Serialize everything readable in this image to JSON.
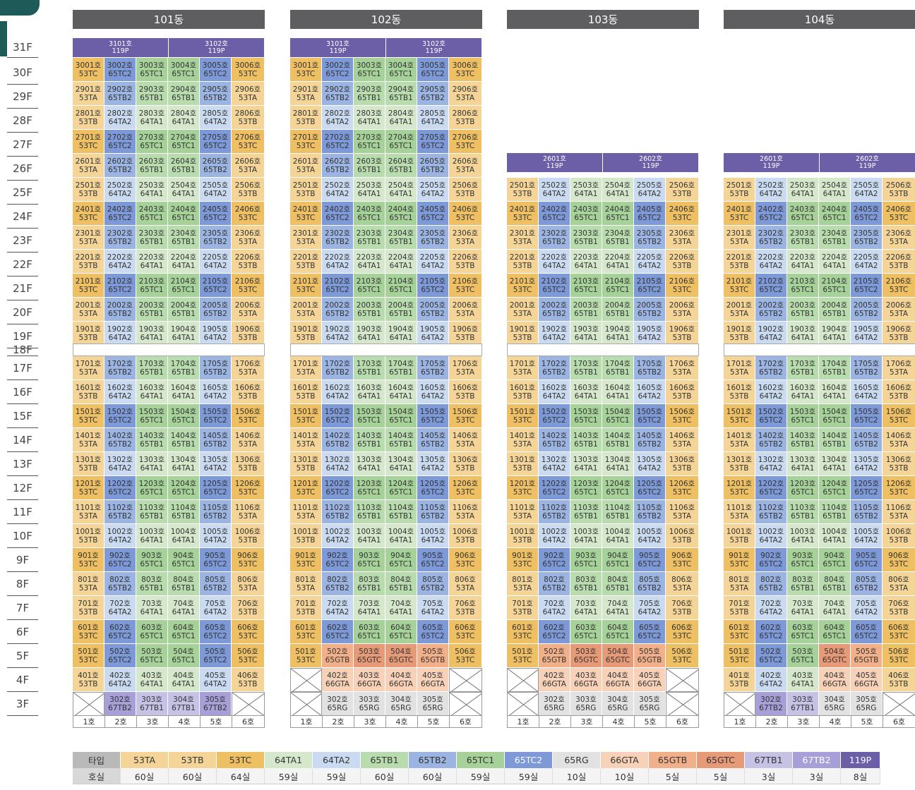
{
  "floor_labels": [
    "31F",
    "30F",
    "29F",
    "28F",
    "27F",
    "26F",
    "25F",
    "24F",
    "23F",
    "22F",
    "21F",
    "20F",
    "19F",
    "18F",
    "17F",
    "16F",
    "15F",
    "14F",
    "13F",
    "12F",
    "11F",
    "10F",
    "9F",
    "8F",
    "7F",
    "6F",
    "5F",
    "4F",
    "3F"
  ],
  "colors": {
    "53TA": "#f5d597",
    "53TB": "#f5d597",
    "53TC": "#eec063",
    "64TA1": "#d6e8cc",
    "64TA2": "#c9daf1",
    "65TB1": "#b9dcae",
    "65TB2": "#9cb4e2",
    "65TC1": "#a6d29a",
    "65TC2": "#7d99d8",
    "65RG": "#e2e2e2",
    "66GTA": "#f7d1b8",
    "65GTB": "#f2b08a",
    "65GTC": "#e79a78",
    "67TB1": "#c6c2e6",
    "67TB2": "#a79fd8",
    "119P": "#6d5ea8",
    "header": "#5e5e60",
    "floor_text": "#444"
  },
  "buildings": [
    {
      "name": "101동",
      "top_floor": 31,
      "p4": "normal",
      "p3": "normal",
      "top_pent": [
        "3101호",
        "3102호"
      ]
    },
    {
      "name": "102동",
      "top_floor": 31,
      "p4": "66",
      "p3": "65RG",
      "top_pent": [
        "3101호",
        "3102호"
      ]
    },
    {
      "name": "103동",
      "top_floor": 26,
      "p4": "66",
      "p3": "65RG",
      "top_pent": [
        "2601호",
        "2602호"
      ]
    },
    {
      "name": "104동",
      "top_floor": 26,
      "p4": "mix",
      "p3": "mix",
      "top_pent": [
        "2601호",
        "2602호"
      ]
    }
  ],
  "pent_type": "119P",
  "line_labels": [
    "1호",
    "2호",
    "3호",
    "4호",
    "5호",
    "6호"
  ],
  "cycle": {
    "mod0": [
      "53TC",
      "65TC2",
      "65TC1",
      "65TC1",
      "65TC2",
      "53TC"
    ],
    "mod1": [
      "53TB",
      "64TA2",
      "64TA1",
      "64TA1",
      "64TA2",
      "53TB"
    ],
    "mod2": [
      "53TA",
      "65TB2",
      "65TB1",
      "65TB1",
      "65TB2",
      "53TA"
    ]
  },
  "floor5": {
    "101동": [
      "53TC",
      "65TC2",
      "65TC1",
      "65TC1",
      "65TC2",
      "53TC"
    ],
    "102동": [
      "53TC",
      "65GTB",
      "65GTC",
      "65GTC",
      "65GTB",
      "53TC"
    ],
    "103동": [
      "53TC",
      "65GTB",
      "65GTC",
      "65GTC",
      "65GTB",
      "53TC"
    ],
    "104동": [
      "53TC",
      "65TC2",
      "65TC1",
      "65GTC",
      "65GTB",
      "53TC"
    ]
  },
  "floor4": {
    "101동": [
      "53TB",
      "64TA2",
      "64TA1",
      "64TA1",
      "64TA2",
      "53TB"
    ],
    "102동": [
      null,
      "66GTA",
      "66GTA",
      "66GTA",
      "66GTA",
      null
    ],
    "103동": [
      null,
      "66GTA",
      "66GTA",
      "66GTA",
      "66GTA",
      null
    ],
    "104동": [
      "53TB",
      "64TA2",
      "64TA1",
      "66GTA",
      "66GTA",
      "53TB"
    ]
  },
  "floor3": {
    "101동": [
      null,
      "67TB2",
      "67TB1",
      "67TB1",
      "67TB2",
      null
    ],
    "102동": [
      null,
      "65RG",
      "65RG",
      "65RG",
      "65RG",
      null
    ],
    "103동": [
      null,
      "65RG",
      "65RG",
      "65RG",
      "65RG",
      null
    ],
    "104동": [
      null,
      "67TB2",
      "67TB1",
      "65RG",
      "65RG",
      null
    ]
  },
  "unit_suffix": "호",
  "legend": {
    "row1_label": "타입",
    "row2_label": "호실",
    "types": [
      "53TA",
      "53TB",
      "53TC",
      "64TA1",
      "64TA2",
      "65TB1",
      "65TB2",
      "65TC1",
      "65TC2",
      "65RG",
      "66GTA",
      "65GTB",
      "65GTC",
      "67TB1",
      "67TB2",
      "119P"
    ],
    "counts": [
      "60실",
      "60실",
      "64실",
      "59실",
      "59실",
      "60실",
      "60실",
      "59실",
      "59실",
      "10실",
      "10실",
      "5실",
      "5실",
      "3실",
      "3실",
      "8실"
    ]
  }
}
